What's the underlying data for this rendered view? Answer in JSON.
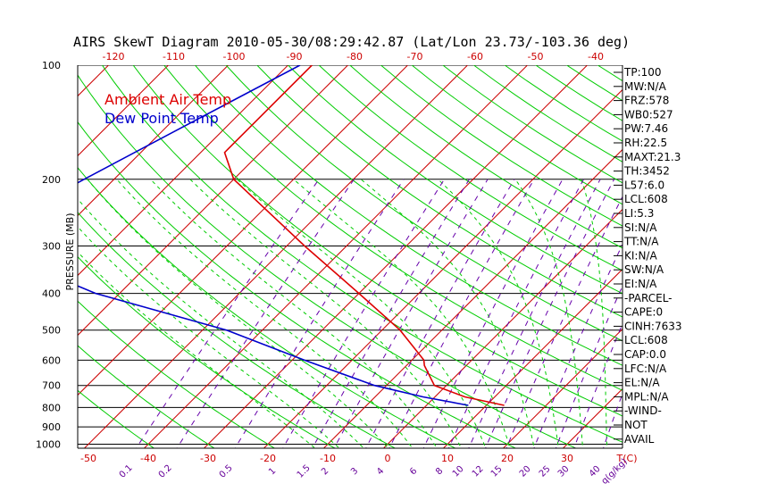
{
  "chart_data": {
    "type": "line",
    "title": "AIRS SkewT Diagram 2010-05-30/08:29:42.87 (Lat/Lon 23.73/-103.36 deg)",
    "ylabel": "PRESSURE (MB)",
    "y_scale": "log",
    "ylim": [
      1050,
      100
    ],
    "pressure_ticks": [
      {
        "p": 100,
        "label": "100"
      },
      {
        "p": 200,
        "label": "200"
      },
      {
        "p": 300,
        "label": "300"
      },
      {
        "p": 400,
        "label": "400"
      },
      {
        "p": 500,
        "label": "500"
      },
      {
        "p": 600,
        "label": "600"
      },
      {
        "p": 700,
        "label": "700"
      },
      {
        "p": 800,
        "label": "800"
      },
      {
        "p": 900,
        "label": "900"
      },
      {
        "p": 1000,
        "label": "1000"
      }
    ],
    "bottom_temp_ticks": [
      {
        "t": -50,
        "label": "-50"
      },
      {
        "t": -40,
        "label": "-40"
      },
      {
        "t": -30,
        "label": "-30"
      },
      {
        "t": -20,
        "label": "-20"
      },
      {
        "t": -10,
        "label": "-10"
      },
      {
        "t": 0,
        "label": "0"
      },
      {
        "t": 10,
        "label": "10"
      },
      {
        "t": 20,
        "label": "20"
      },
      {
        "t": 30,
        "label": "30"
      },
      {
        "t": 40,
        "label": "T(C)"
      }
    ],
    "top_temp_ticks": [
      {
        "t": -120,
        "label": "-120"
      },
      {
        "t": -110,
        "label": "-110"
      },
      {
        "t": -100,
        "label": "-100"
      },
      {
        "t": -90,
        "label": "-90"
      },
      {
        "t": -80,
        "label": "-80"
      },
      {
        "t": -70,
        "label": "-70"
      },
      {
        "t": -60,
        "label": "-60"
      },
      {
        "t": -50,
        "label": "-50"
      },
      {
        "t": -40,
        "label": "-40"
      }
    ],
    "mixing_ratio_labels": [
      "0.1",
      "0.2",
      "0.5",
      "1",
      "1.5",
      "2",
      "3",
      "4",
      "6",
      "8",
      "10",
      "12",
      "15",
      "20",
      "25",
      "30",
      "40",
      "q(g/kg)"
    ],
    "series": [
      {
        "name": "Ambient Air Temp",
        "color": "#dd0000",
        "points": [
          [
            100,
            -76
          ],
          [
            170,
            -76
          ],
          [
            200,
            -70
          ],
          [
            300,
            -47
          ],
          [
            400,
            -30
          ],
          [
            500,
            -17
          ],
          [
            600,
            -8
          ],
          [
            620,
            -7
          ],
          [
            700,
            -2
          ],
          [
            750,
            5
          ],
          [
            790,
            13
          ]
        ]
      },
      {
        "name": "Dew Point Temp",
        "color": "#0000cc",
        "points": [
          [
            100,
            -78
          ],
          [
            150,
            -88
          ],
          [
            200,
            -95
          ],
          [
            250,
            -100
          ],
          [
            300,
            -101
          ],
          [
            400,
            -74
          ],
          [
            500,
            -46
          ],
          [
            600,
            -28
          ],
          [
            700,
            -12
          ],
          [
            750,
            -2
          ],
          [
            790,
            7
          ]
        ]
      }
    ],
    "legend_placement": "top-left",
    "grid": true,
    "line_families": {
      "isotherms": {
        "color": "#cc0000"
      },
      "dry_adiabats": {
        "color": "#00cc00"
      },
      "moist_adiabats": {
        "color": "#00cc00",
        "style": "dashed"
      },
      "mixing_ratio": {
        "color": "#6600aa",
        "style": "dashed"
      }
    }
  },
  "side_panel": [
    "TP:100",
    "MW:N/A",
    "FRZ:578",
    "WB0:527",
    "PW:7.46",
    "RH:22.5",
    "MAXT:21.3",
    "TH:3452",
    "L57:6.0",
    "LCL:608",
    "LI:5.3",
    "SI:N/A",
    "TT:N/A",
    "KI:N/A",
    "SW:N/A",
    "EI:N/A",
    "-PARCEL-",
    "CAPE:0",
    "CINH:7633",
    "LCL:608",
    "CAP:0.0",
    "LFC:N/A",
    "EL:N/A",
    "MPL:N/A",
    "-WIND-",
    "NOT",
    "AVAIL"
  ]
}
